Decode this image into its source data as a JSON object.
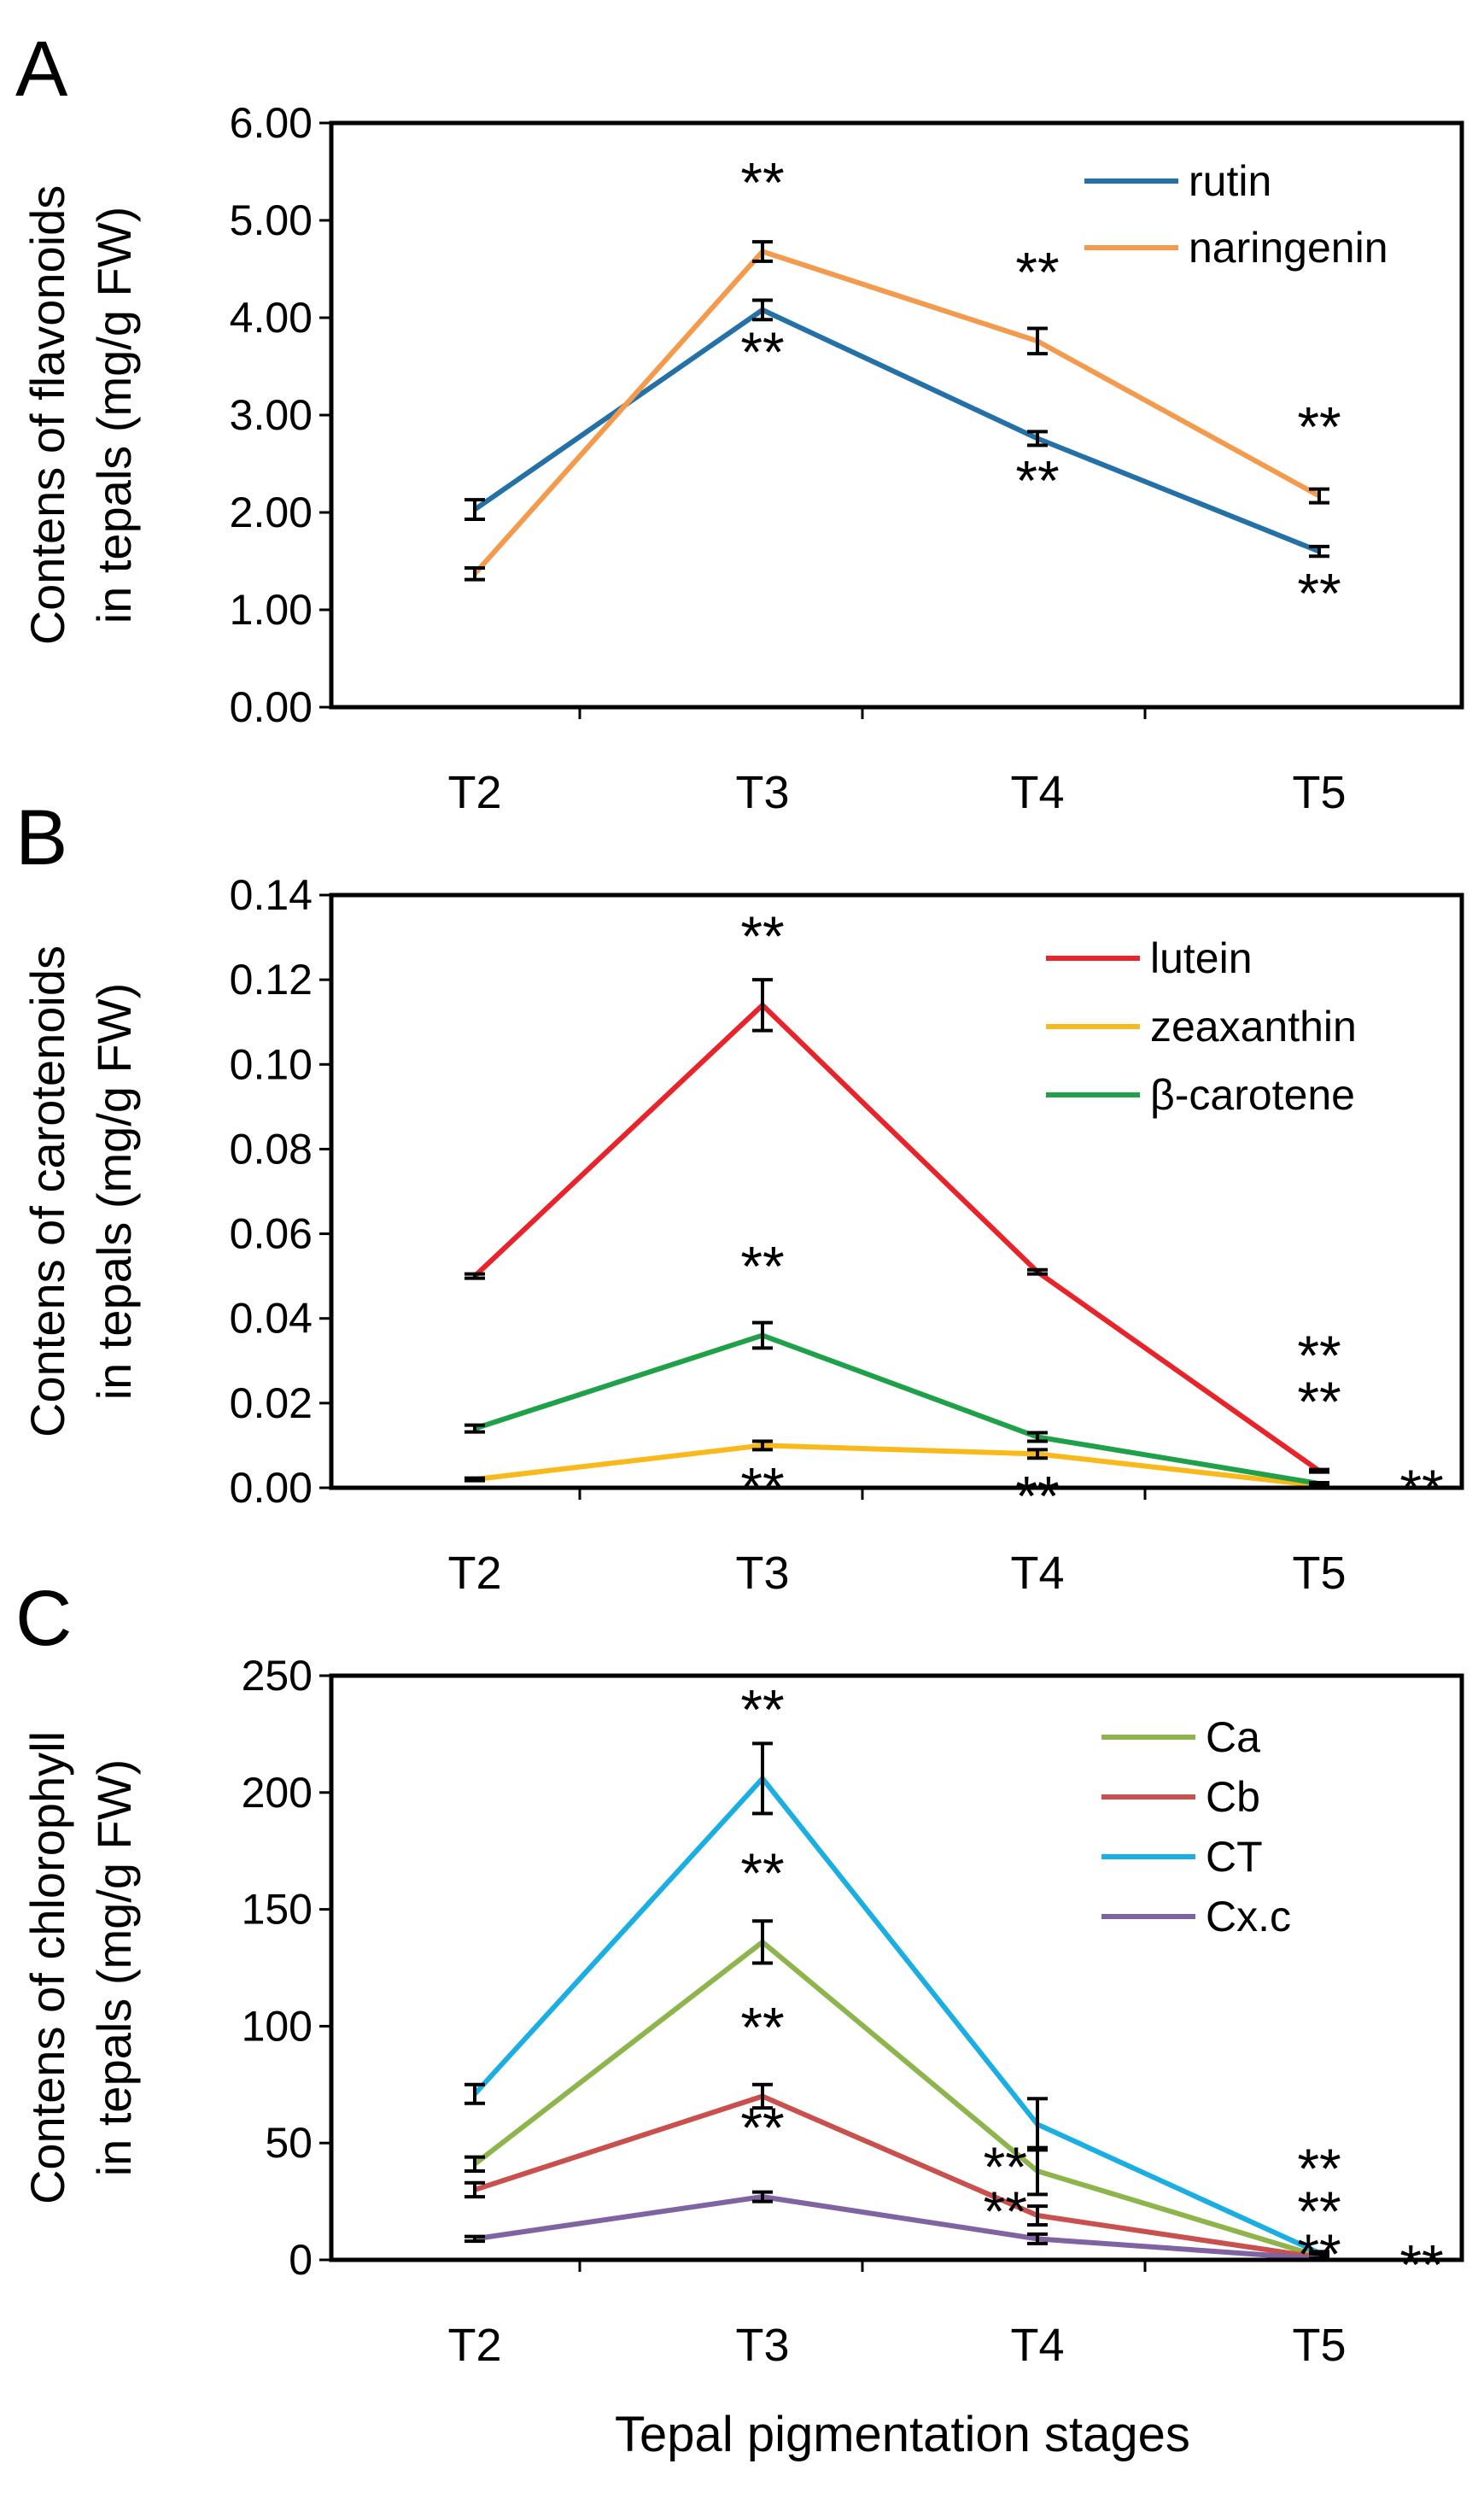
{
  "figure": {
    "xlabel_common": "Tepal pigmentation stages"
  },
  "chart_data": [
    {
      "panel": "A",
      "type": "line",
      "title": "",
      "ylabel": [
        "Contens of flavonoids",
        "in tepals (mg/g FW)"
      ],
      "xlabel": "",
      "categories": [
        "T2",
        "T3",
        "T4",
        "T5"
      ],
      "ylim": [
        0,
        6
      ],
      "yticks": [
        0,
        1,
        2,
        3,
        4,
        5,
        6
      ],
      "ytick_labels": [
        "0.00",
        "1.00",
        "2.00",
        "3.00",
        "4.00",
        "5.00",
        "6.00"
      ],
      "legend_position": "top-right",
      "series": [
        {
          "name": "rutin",
          "color": "#2471a8",
          "values": [
            2.03,
            4.08,
            2.76,
            1.6
          ],
          "errors": [
            0.1,
            0.1,
            0.07,
            0.05
          ]
        },
        {
          "name": "naringenin",
          "color": "#f39a4c",
          "values": [
            1.37,
            4.68,
            3.76,
            2.17
          ],
          "errors": [
            0.06,
            0.1,
            0.13,
            0.07
          ]
        }
      ],
      "annotations": [
        {
          "text": "**",
          "series": "naringenin",
          "category": "T3",
          "side": "above"
        },
        {
          "text": "**",
          "series": "rutin",
          "category": "T3",
          "side": "below"
        },
        {
          "text": "**",
          "series": "naringenin",
          "category": "T4",
          "side": "above"
        },
        {
          "text": "**",
          "series": "rutin",
          "category": "T4",
          "side": "below"
        },
        {
          "text": "**",
          "series": "naringenin",
          "category": "T5",
          "side": "above"
        },
        {
          "text": "**",
          "series": "rutin",
          "category": "T5",
          "side": "below"
        }
      ]
    },
    {
      "panel": "B",
      "type": "line",
      "title": "",
      "ylabel": [
        "Contens of carotenoids",
        "in tepals (mg/g FW)"
      ],
      "xlabel": "",
      "categories": [
        "T2",
        "T3",
        "T4",
        "T5"
      ],
      "ylim": [
        0,
        0.14
      ],
      "yticks": [
        0,
        0.02,
        0.04,
        0.06,
        0.08,
        0.1,
        0.12,
        0.14
      ],
      "ytick_labels": [
        "0.00",
        "0.02",
        "0.04",
        "0.06",
        "0.08",
        "0.10",
        "0.12",
        "0.14"
      ],
      "legend_position": "top-right",
      "series": [
        {
          "name": "lutein",
          "color": "#e8242a",
          "values": [
            0.05,
            0.114,
            0.051,
            0.004
          ],
          "errors": [
            0.0005,
            0.006,
            0.0005,
            0.0003
          ]
        },
        {
          "name": "zeaxanthin",
          "color": "#f9b91a",
          "values": [
            0.002,
            0.01,
            0.008,
            0.0005
          ],
          "errors": [
            0.0003,
            0.001,
            0.001,
            0.0002
          ]
        },
        {
          "name": "β-carotene",
          "color": "#1fa14a",
          "values": [
            0.014,
            0.036,
            0.012,
            0.001
          ],
          "errors": [
            0.0008,
            0.003,
            0.001,
            0.0002
          ]
        }
      ],
      "annotations": [
        {
          "text": "**",
          "series": "lutein",
          "category": "T3",
          "side": "above"
        },
        {
          "text": "**",
          "series": "β-carotene",
          "category": "T3",
          "side": "above"
        },
        {
          "text": "**",
          "series": "zeaxanthin",
          "category": "T3",
          "side": "below"
        },
        {
          "text": "**",
          "series": "zeaxanthin",
          "category": "T4",
          "side": "below"
        },
        {
          "text": "**",
          "series": "lutein",
          "category": "T5",
          "side": "above"
        },
        {
          "text": "**",
          "series": "lutein",
          "category": "T5",
          "side": "above2"
        },
        {
          "text": "**",
          "series": "β-carotene",
          "category": "T5",
          "side": "right"
        }
      ]
    },
    {
      "panel": "C",
      "type": "line",
      "title": "",
      "ylabel": [
        "Contens of chlorophyll",
        "in tepals (mg/g FW)"
      ],
      "xlabel": "Tepal pigmentation stages",
      "categories": [
        "T2",
        "T3",
        "T4",
        "T5"
      ],
      "ylim": [
        0,
        250
      ],
      "yticks": [
        0,
        50,
        100,
        150,
        200,
        250
      ],
      "ytick_labels": [
        "0",
        "50",
        "100",
        "150",
        "200",
        "250"
      ],
      "legend_position": "top-right",
      "series": [
        {
          "name": "Ca",
          "color": "#8db54b",
          "values": [
            41,
            136,
            38,
            1.5
          ],
          "errors": [
            3,
            9,
            10,
            0.4
          ]
        },
        {
          "name": "Cb",
          "color": "#c9504d",
          "values": [
            30,
            70,
            19,
            1
          ],
          "errors": [
            3,
            5,
            4,
            0.3
          ]
        },
        {
          "name": "CT",
          "color": "#1aaee3",
          "values": [
            71,
            206,
            58,
            3
          ],
          "errors": [
            4,
            15,
            11,
            0.5
          ]
        },
        {
          "name": "Cx.c",
          "color": "#8063a3",
          "values": [
            9,
            27,
            9,
            0.5
          ],
          "errors": [
            1,
            2,
            2,
            0.2
          ]
        }
      ],
      "annotations": [
        {
          "text": "**",
          "series": "CT",
          "category": "T3",
          "side": "above"
        },
        {
          "text": "**",
          "series": "Ca",
          "category": "T3",
          "side": "above"
        },
        {
          "text": "**",
          "series": "Cb",
          "category": "T3",
          "side": "above"
        },
        {
          "text": "**",
          "series": "Cx.c",
          "category": "T3",
          "side": "above"
        },
        {
          "text": "**",
          "series": "Ca",
          "category": "T4",
          "side": "left"
        },
        {
          "text": "**",
          "series": "Cb",
          "category": "T4",
          "side": "left"
        },
        {
          "text": "**",
          "series": "CT",
          "category": "T5",
          "side": "stack1"
        },
        {
          "text": "**",
          "series": "Ca",
          "category": "T5",
          "side": "stack2"
        },
        {
          "text": "**",
          "series": "Cb",
          "category": "T5",
          "side": "stack3"
        },
        {
          "text": "**",
          "series": "Cx.c",
          "category": "T5",
          "side": "right"
        }
      ]
    }
  ]
}
